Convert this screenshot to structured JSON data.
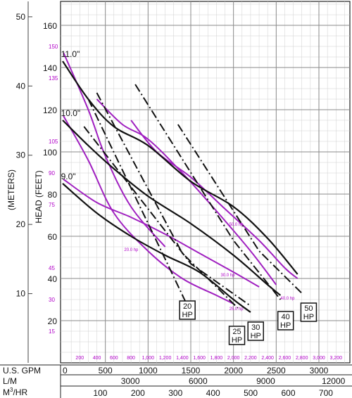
{
  "chart_data": {
    "type": "line",
    "title": "",
    "ylabel_meters": "(METERS)",
    "ylabel_feet": "HEAD (FEET)",
    "x_primary": {
      "name": "U.S. GPM",
      "range": [
        0,
        3200
      ],
      "ticks": [
        0,
        500,
        1000,
        1500,
        2000,
        2500,
        3000
      ]
    },
    "x_purple_ticks": [
      "200",
      "400",
      "600",
      "800",
      "1,000",
      "1,200",
      "1,400",
      "1,600",
      "1,800",
      "2,000",
      "2,200",
      "2,400",
      "2,600",
      "2,800",
      "3,000",
      "3,200"
    ],
    "x_lm": {
      "name": "L/M",
      "ticks": [
        3000,
        6000,
        9000,
        12000
      ]
    },
    "x_m3hr": {
      "name": "M³/HR",
      "label_base": "M",
      "label_sup": "3",
      "label_tail": "/HR",
      "ticks": [
        100,
        200,
        300,
        400,
        500,
        600,
        700
      ]
    },
    "y_feet": {
      "range": [
        0,
        170
      ],
      "ticks": [
        20,
        40,
        60,
        80,
        100,
        120,
        140,
        160
      ]
    },
    "y_purple_ticks": [
      "15",
      "30",
      "45",
      "75",
      "90",
      "105",
      "135",
      "150"
    ],
    "y_meters": {
      "ticks": [
        10,
        20,
        30,
        40,
        50
      ]
    },
    "grid": true,
    "impeller_curves": [
      {
        "name": "11.0\"",
        "points": [
          [
            0,
            143
          ],
          [
            300,
            125
          ],
          [
            600,
            112
          ],
          [
            1000,
            103
          ],
          [
            1500,
            86
          ],
          [
            2000,
            74
          ],
          [
            2400,
            59
          ],
          [
            2750,
            42
          ]
        ]
      },
      {
        "name": "10.0\"",
        "points": [
          [
            0,
            115
          ],
          [
            300,
            103
          ],
          [
            600,
            92
          ],
          [
            1000,
            79
          ],
          [
            1500,
            66
          ],
          [
            2000,
            51
          ],
          [
            2400,
            37
          ],
          [
            2550,
            32
          ]
        ]
      },
      {
        "name": "9.0\"",
        "points": [
          [
            0,
            85
          ],
          [
            400,
            71
          ],
          [
            800,
            60
          ],
          [
            1200,
            51
          ],
          [
            1600,
            43
          ],
          [
            2000,
            30
          ],
          [
            2200,
            24
          ]
        ]
      }
    ],
    "hp_curves": [
      {
        "name": "20.0 hp",
        "points": [
          [
            10,
            147
          ],
          [
            300,
            120
          ],
          [
            500,
            98
          ],
          [
            800,
            74
          ],
          [
            1200,
            55
          ]
        ]
      },
      {
        "name": "25.0 hp",
        "points": [
          [
            10,
            117
          ],
          [
            300,
            96
          ],
          [
            600,
            71
          ],
          [
            1000,
            53
          ],
          [
            1400,
            40
          ],
          [
            1800,
            32
          ],
          [
            2000,
            28
          ]
        ]
      },
      {
        "name": "30.0 hp",
        "points": [
          [
            10,
            87
          ],
          [
            400,
            76
          ],
          [
            800,
            69
          ],
          [
            1200,
            61
          ],
          [
            1600,
            52
          ],
          [
            2000,
            43
          ],
          [
            2300,
            36
          ]
        ]
      },
      {
        "name": "40.0 hp",
        "points": [
          [
            400,
            125
          ],
          [
            700,
            113
          ],
          [
            1000,
            106
          ],
          [
            1400,
            90
          ],
          [
            1800,
            72
          ],
          [
            2200,
            53
          ],
          [
            2500,
            37
          ]
        ]
      },
      {
        "name": "50.0 hp",
        "points": [
          [
            800,
            115
          ],
          [
            1100,
            100
          ],
          [
            1500,
            88
          ],
          [
            1900,
            73
          ],
          [
            2300,
            58
          ],
          [
            2600,
            45
          ],
          [
            2750,
            40
          ]
        ]
      }
    ],
    "hp_limit_lines": [
      {
        "name": "20 HP",
        "points": [
          [
            300,
            125
          ],
          [
            1250,
            45
          ],
          [
            1450,
            28
          ]
        ]
      },
      {
        "name": "25 HP",
        "points": [
          [
            400,
            128
          ],
          [
            1400,
            52
          ],
          [
            2050,
            26
          ]
        ]
      },
      {
        "name": "30 HP",
        "points": [
          [
            250,
            112
          ],
          [
            1500,
            47
          ],
          [
            2200,
            27
          ]
        ]
      },
      {
        "name": "40 HP",
        "points": [
          [
            850,
            132
          ],
          [
            2000,
            58
          ],
          [
            2550,
            30
          ]
        ]
      },
      {
        "name": "50 HP",
        "points": [
          [
            1350,
            113
          ],
          [
            2300,
            53
          ],
          [
            2800,
            33
          ]
        ]
      }
    ],
    "hp_boxes": [
      {
        "top": "20",
        "bottom": "HP"
      },
      {
        "top": "25",
        "bottom": "HP"
      },
      {
        "top": "30",
        "bottom": "HP"
      },
      {
        "top": "40",
        "bottom": "HP"
      },
      {
        "top": "50",
        "bottom": "HP"
      }
    ],
    "colors": {
      "impeller": "#111111",
      "hp": "#a020c0",
      "grid": "#999999",
      "purple_text": "#b000c8"
    }
  }
}
